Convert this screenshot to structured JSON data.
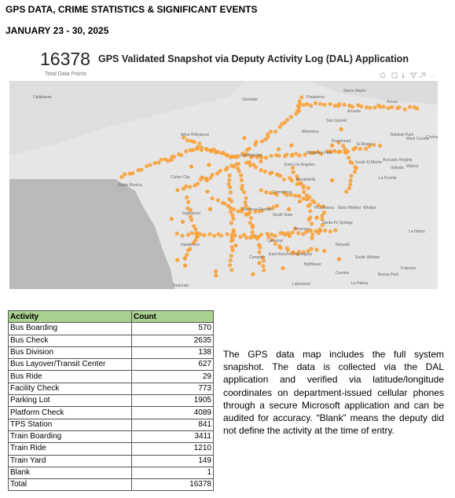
{
  "header": {
    "title": "GPS DATA, CRIME STATISTICS & SIGNIFICANT EVENTS",
    "date": "JANUARY 23 - 30, 2025"
  },
  "map_card": {
    "total": "16378",
    "total_label": "Total Data Points",
    "title": "GPS Validated Snapshot via Deputy Activity Log (DAL) Application",
    "places": [
      "Calabasas",
      "Glendale",
      "Pasadena",
      "Sierra Madre",
      "Azusa",
      "Arcadia",
      "San Gabriel",
      "Alhambra",
      "West Covina",
      "Baldwin Park",
      "Covina",
      "Monterey Park",
      "Rosemead",
      "El Monte",
      "South El Monte",
      "Los Angeles",
      "West Hollywood",
      "Santa Monica",
      "Culver City",
      "East Los Angeles",
      "Montebello",
      "Commerce",
      "Pico Rivera",
      "Whittier",
      "West Whittier",
      "Santa Fe Springs",
      "Downey",
      "Inglewood",
      "Hawthorne",
      "Florence-Graham",
      "South Gate",
      "Norwalk",
      "South Whittier",
      "La Habra",
      "Fullerton",
      "Cerritos",
      "Buena Park",
      "La Palma",
      "Lakewood",
      "Bellflower",
      "Redondo",
      "Compton",
      "Walnut",
      "La Puente",
      "Avocado Heights",
      "Valinda",
      "Lynwood",
      "East Rancho Dominguez"
    ]
  },
  "table": {
    "header": [
      "Activity",
      "Count"
    ],
    "rows": [
      [
        "Bus Boarding",
        570
      ],
      [
        "Bus Check",
        2635
      ],
      [
        "Bus Division",
        138
      ],
      [
        "Bus Layover/Transit Center",
        627
      ],
      [
        "Bus Ride",
        29
      ],
      [
        "Facility Check",
        773
      ],
      [
        "Parking Lot",
        1905
      ],
      [
        "Platform Check",
        4089
      ],
      [
        "TPS Station",
        841
      ],
      [
        "Train Boarding",
        3411
      ],
      [
        "Train Ride",
        1210
      ],
      [
        "Train Yard",
        149
      ],
      [
        "Blank",
        1
      ],
      [
        "Total",
        16378
      ]
    ]
  },
  "note": "The GPS data map includes the full system snapshot. The data is collected via the DAL application and verified via latitude/longitude coordinates on department-issued cellular phones through a secure Microsoft application and can be audited for accuracy. “Blank” means the deputy did not define the activity at the time of entry."
}
